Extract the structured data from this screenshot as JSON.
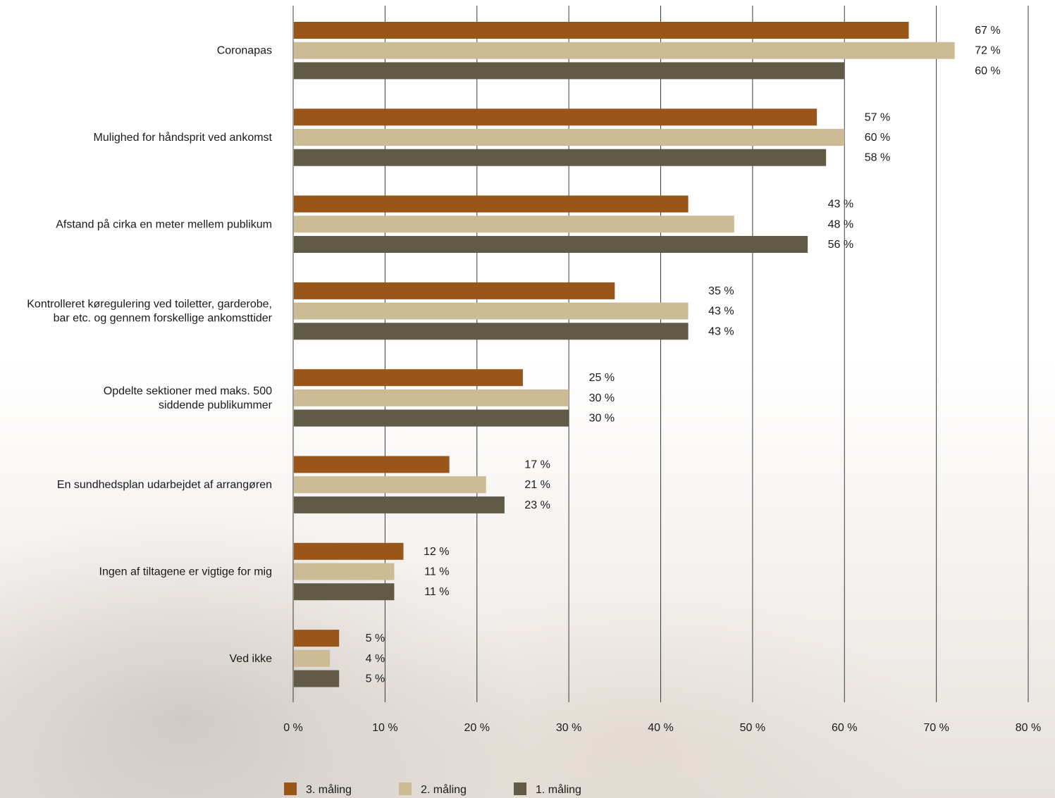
{
  "chart_data": {
    "type": "bar",
    "orientation": "horizontal",
    "categories": [
      "Coronapas",
      "Mulighed for håndsprit ved ankomst",
      "Afstand på cirka en meter mellem publikum",
      "Kontrolleret køregulering ved toiletter, garderobe, bar etc. og gennem forskellige ankomsttider",
      "Opdelte sektioner med maks. 500 siddende publikummer",
      "En sundhedsplan udarbejdet af arrangøren",
      "Ingen af tiltagene er vigtige for mig",
      "Ved ikke"
    ],
    "category_lines": [
      [
        "Coronapas"
      ],
      [
        "Mulighed for håndsprit ved ankomst"
      ],
      [
        "Afstand på cirka en meter mellem publikum"
      ],
      [
        "Kontrolleret køregulering ved toiletter, garderobe,",
        "bar etc. og gennem forskellige ankomsttider"
      ],
      [
        "Opdelte sektioner med maks. 500",
        "siddende publikummer"
      ],
      [
        "En sundhedsplan udarbejdet af arrangøren"
      ],
      [
        "Ingen af tiltagene er vigtige for mig"
      ],
      [
        "Ved ikke"
      ]
    ],
    "series": [
      {
        "name": "3. måling",
        "color": "#9a5519",
        "values": [
          67,
          57,
          43,
          35,
          25,
          17,
          12,
          5
        ]
      },
      {
        "name": "2. måling",
        "color": "#cdbb95",
        "values": [
          72,
          60,
          48,
          43,
          30,
          21,
          11,
          4
        ]
      },
      {
        "name": "1. måling",
        "color": "#615a46",
        "values": [
          60,
          58,
          56,
          43,
          30,
          23,
          11,
          5
        ]
      }
    ],
    "xlim": [
      0,
      80
    ],
    "x_ticks": [
      0,
      10,
      20,
      30,
      40,
      50,
      60,
      70,
      80
    ],
    "tick_suffix": " %",
    "label_suffix": " %",
    "grid": true,
    "legend_position": "bottom"
  }
}
